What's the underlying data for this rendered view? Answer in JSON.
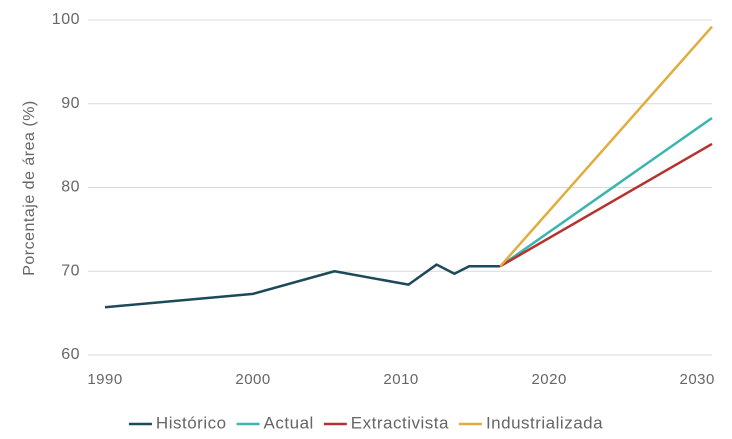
{
  "chart_data": {
    "type": "line",
    "y_label": "Porcentaje de área (%)",
    "xlim": [
      1990,
      2031
    ],
    "xticks": [
      1990,
      2000,
      2010,
      2020,
      2030
    ],
    "ylim": [
      60,
      100
    ],
    "yticks": [
      60,
      70,
      80,
      90,
      100
    ],
    "grid": true,
    "legend": "bottom",
    "series": [
      {
        "name": "Histórico",
        "color": "#1d4a5a",
        "x": [
          1990,
          2000,
          2005.5,
          2010.5,
          2012.4,
          2013.6,
          2014.6,
          2016.7
        ],
        "values": [
          65.7,
          67.3,
          70.0,
          68.4,
          70.8,
          69.7,
          70.6,
          70.6
        ]
      },
      {
        "name": "Actual",
        "color": "#3ab5b0",
        "x": [
          2016.7,
          2031
        ],
        "values": [
          70.6,
          88.3
        ]
      },
      {
        "name": "Extractivista",
        "color": "#b5322e",
        "x": [
          2016.7,
          2031
        ],
        "values": [
          70.6,
          85.2
        ]
      },
      {
        "name": "Industrializada",
        "color": "#e0ad3e",
        "x": [
          2016.7,
          2031
        ],
        "values": [
          70.6,
          99.2
        ]
      }
    ]
  }
}
